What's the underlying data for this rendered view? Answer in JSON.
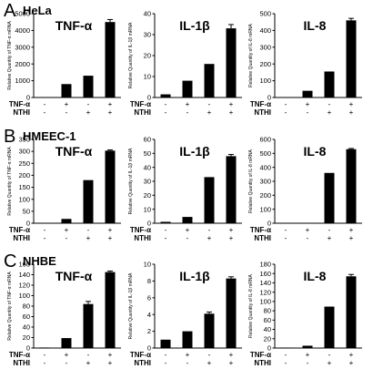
{
  "colors": {
    "bar": "#000000",
    "axis": "#000000",
    "background": "#ffffff"
  },
  "rows": [
    {
      "letter": "A",
      "name": "HeLa"
    },
    {
      "letter": "B",
      "name": "HMEEC-1"
    },
    {
      "letter": "C",
      "name": "NHBE"
    }
  ],
  "conditions": [
    {
      "label": "TNF-α",
      "signs": [
        "-",
        "+",
        "-",
        "+"
      ]
    },
    {
      "label": "NTHI",
      "signs": [
        "-",
        "-",
        "+",
        "+"
      ]
    }
  ],
  "chart_data": [
    {
      "type": "bar",
      "row": 0,
      "col": 0,
      "title": "TNF-α",
      "ylabel": "Relative Quantity of TNF-α mRNA",
      "ylim": [
        0,
        5000
      ],
      "yticks": [
        0,
        1000,
        2000,
        3000,
        4000,
        5000
      ],
      "categories": [
        "-/-",
        "+/-",
        "-/+",
        "+/+"
      ],
      "values": [
        0,
        800,
        1300,
        4500
      ],
      "errors": [
        0,
        0,
        0,
        150
      ]
    },
    {
      "type": "bar",
      "row": 0,
      "col": 1,
      "title": "IL-1β",
      "ylabel": "Relative Quantity of IL-1β mRNA",
      "ylim": [
        0,
        40
      ],
      "yticks": [
        0,
        10,
        20,
        30,
        40
      ],
      "categories": [
        "-/-",
        "+/-",
        "-/+",
        "+/+"
      ],
      "values": [
        1.5,
        8,
        16,
        33
      ],
      "errors": [
        0,
        0,
        0,
        1.8
      ]
    },
    {
      "type": "bar",
      "row": 0,
      "col": 2,
      "title": "IL-8",
      "ylabel": "Relative Quantity of IL-8 mRNA",
      "ylim": [
        0,
        500
      ],
      "yticks": [
        0,
        100,
        200,
        300,
        400,
        500
      ],
      "categories": [
        "-/-",
        "+/-",
        "-/+",
        "+/+"
      ],
      "values": [
        0,
        40,
        155,
        460
      ],
      "errors": [
        0,
        0,
        0,
        12
      ]
    },
    {
      "type": "bar",
      "row": 1,
      "col": 0,
      "title": "TNF-α",
      "ylabel": "Relative Quantity of TNF-α mRNA",
      "ylim": [
        0,
        350
      ],
      "yticks": [
        0,
        50,
        100,
        150,
        200,
        250,
        300,
        350
      ],
      "categories": [
        "-/-",
        "+/-",
        "-/+",
        "+/+"
      ],
      "values": [
        0,
        18,
        180,
        303
      ],
      "errors": [
        0,
        0,
        0,
        3
      ]
    },
    {
      "type": "bar",
      "row": 1,
      "col": 1,
      "title": "IL-1β",
      "ylabel": "Relative Quantity of IL-1β mRNA",
      "ylim": [
        0,
        60
      ],
      "yticks": [
        0,
        10,
        20,
        30,
        40,
        50,
        60
      ],
      "categories": [
        "-/-",
        "+/-",
        "-/+",
        "+/+"
      ],
      "values": [
        1,
        4.5,
        33,
        48
      ],
      "errors": [
        0,
        0,
        0,
        1.2
      ]
    },
    {
      "type": "bar",
      "row": 1,
      "col": 2,
      "title": "IL-8",
      "ylabel": "Relative Quantity of IL-8 mRNA",
      "ylim": [
        0,
        600
      ],
      "yticks": [
        0,
        100,
        200,
        300,
        400,
        500,
        600
      ],
      "categories": [
        "-/-",
        "+/-",
        "-/+",
        "+/+"
      ],
      "values": [
        0,
        0,
        360,
        530
      ],
      "errors": [
        0,
        0,
        0,
        5
      ]
    },
    {
      "type": "bar",
      "row": 2,
      "col": 0,
      "title": "TNF-α",
      "ylabel": "Relative Quantity of TNF-α mRNA",
      "ylim": [
        0,
        160
      ],
      "yticks": [
        0,
        20,
        40,
        60,
        80,
        100,
        120,
        140,
        160
      ],
      "categories": [
        "-/-",
        "+/-",
        "-/+",
        "+/+"
      ],
      "values": [
        1,
        19,
        84,
        145
      ],
      "errors": [
        0,
        0,
        5,
        2
      ]
    },
    {
      "type": "bar",
      "row": 2,
      "col": 1,
      "title": "IL-1β",
      "ylabel": "Relative Quantity of IL-1β mRNA",
      "ylim": [
        0,
        10
      ],
      "yticks": [
        0,
        2,
        4,
        6,
        8,
        10
      ],
      "categories": [
        "-/-",
        "+/-",
        "-/+",
        "+/+"
      ],
      "values": [
        1,
        2,
        4.1,
        8.3
      ],
      "errors": [
        0,
        0,
        0.2,
        0.2
      ]
    },
    {
      "type": "bar",
      "row": 2,
      "col": 2,
      "title": "IL-8",
      "ylabel": "Relative Quantity of IL-8 mRNA",
      "ylim": [
        0,
        180
      ],
      "yticks": [
        0,
        20,
        40,
        60,
        80,
        100,
        120,
        140,
        160,
        180
      ],
      "categories": [
        "-/-",
        "+/-",
        "-/+",
        "+/+"
      ],
      "values": [
        1,
        5,
        89,
        154
      ],
      "errors": [
        0,
        0,
        0,
        4
      ]
    }
  ]
}
